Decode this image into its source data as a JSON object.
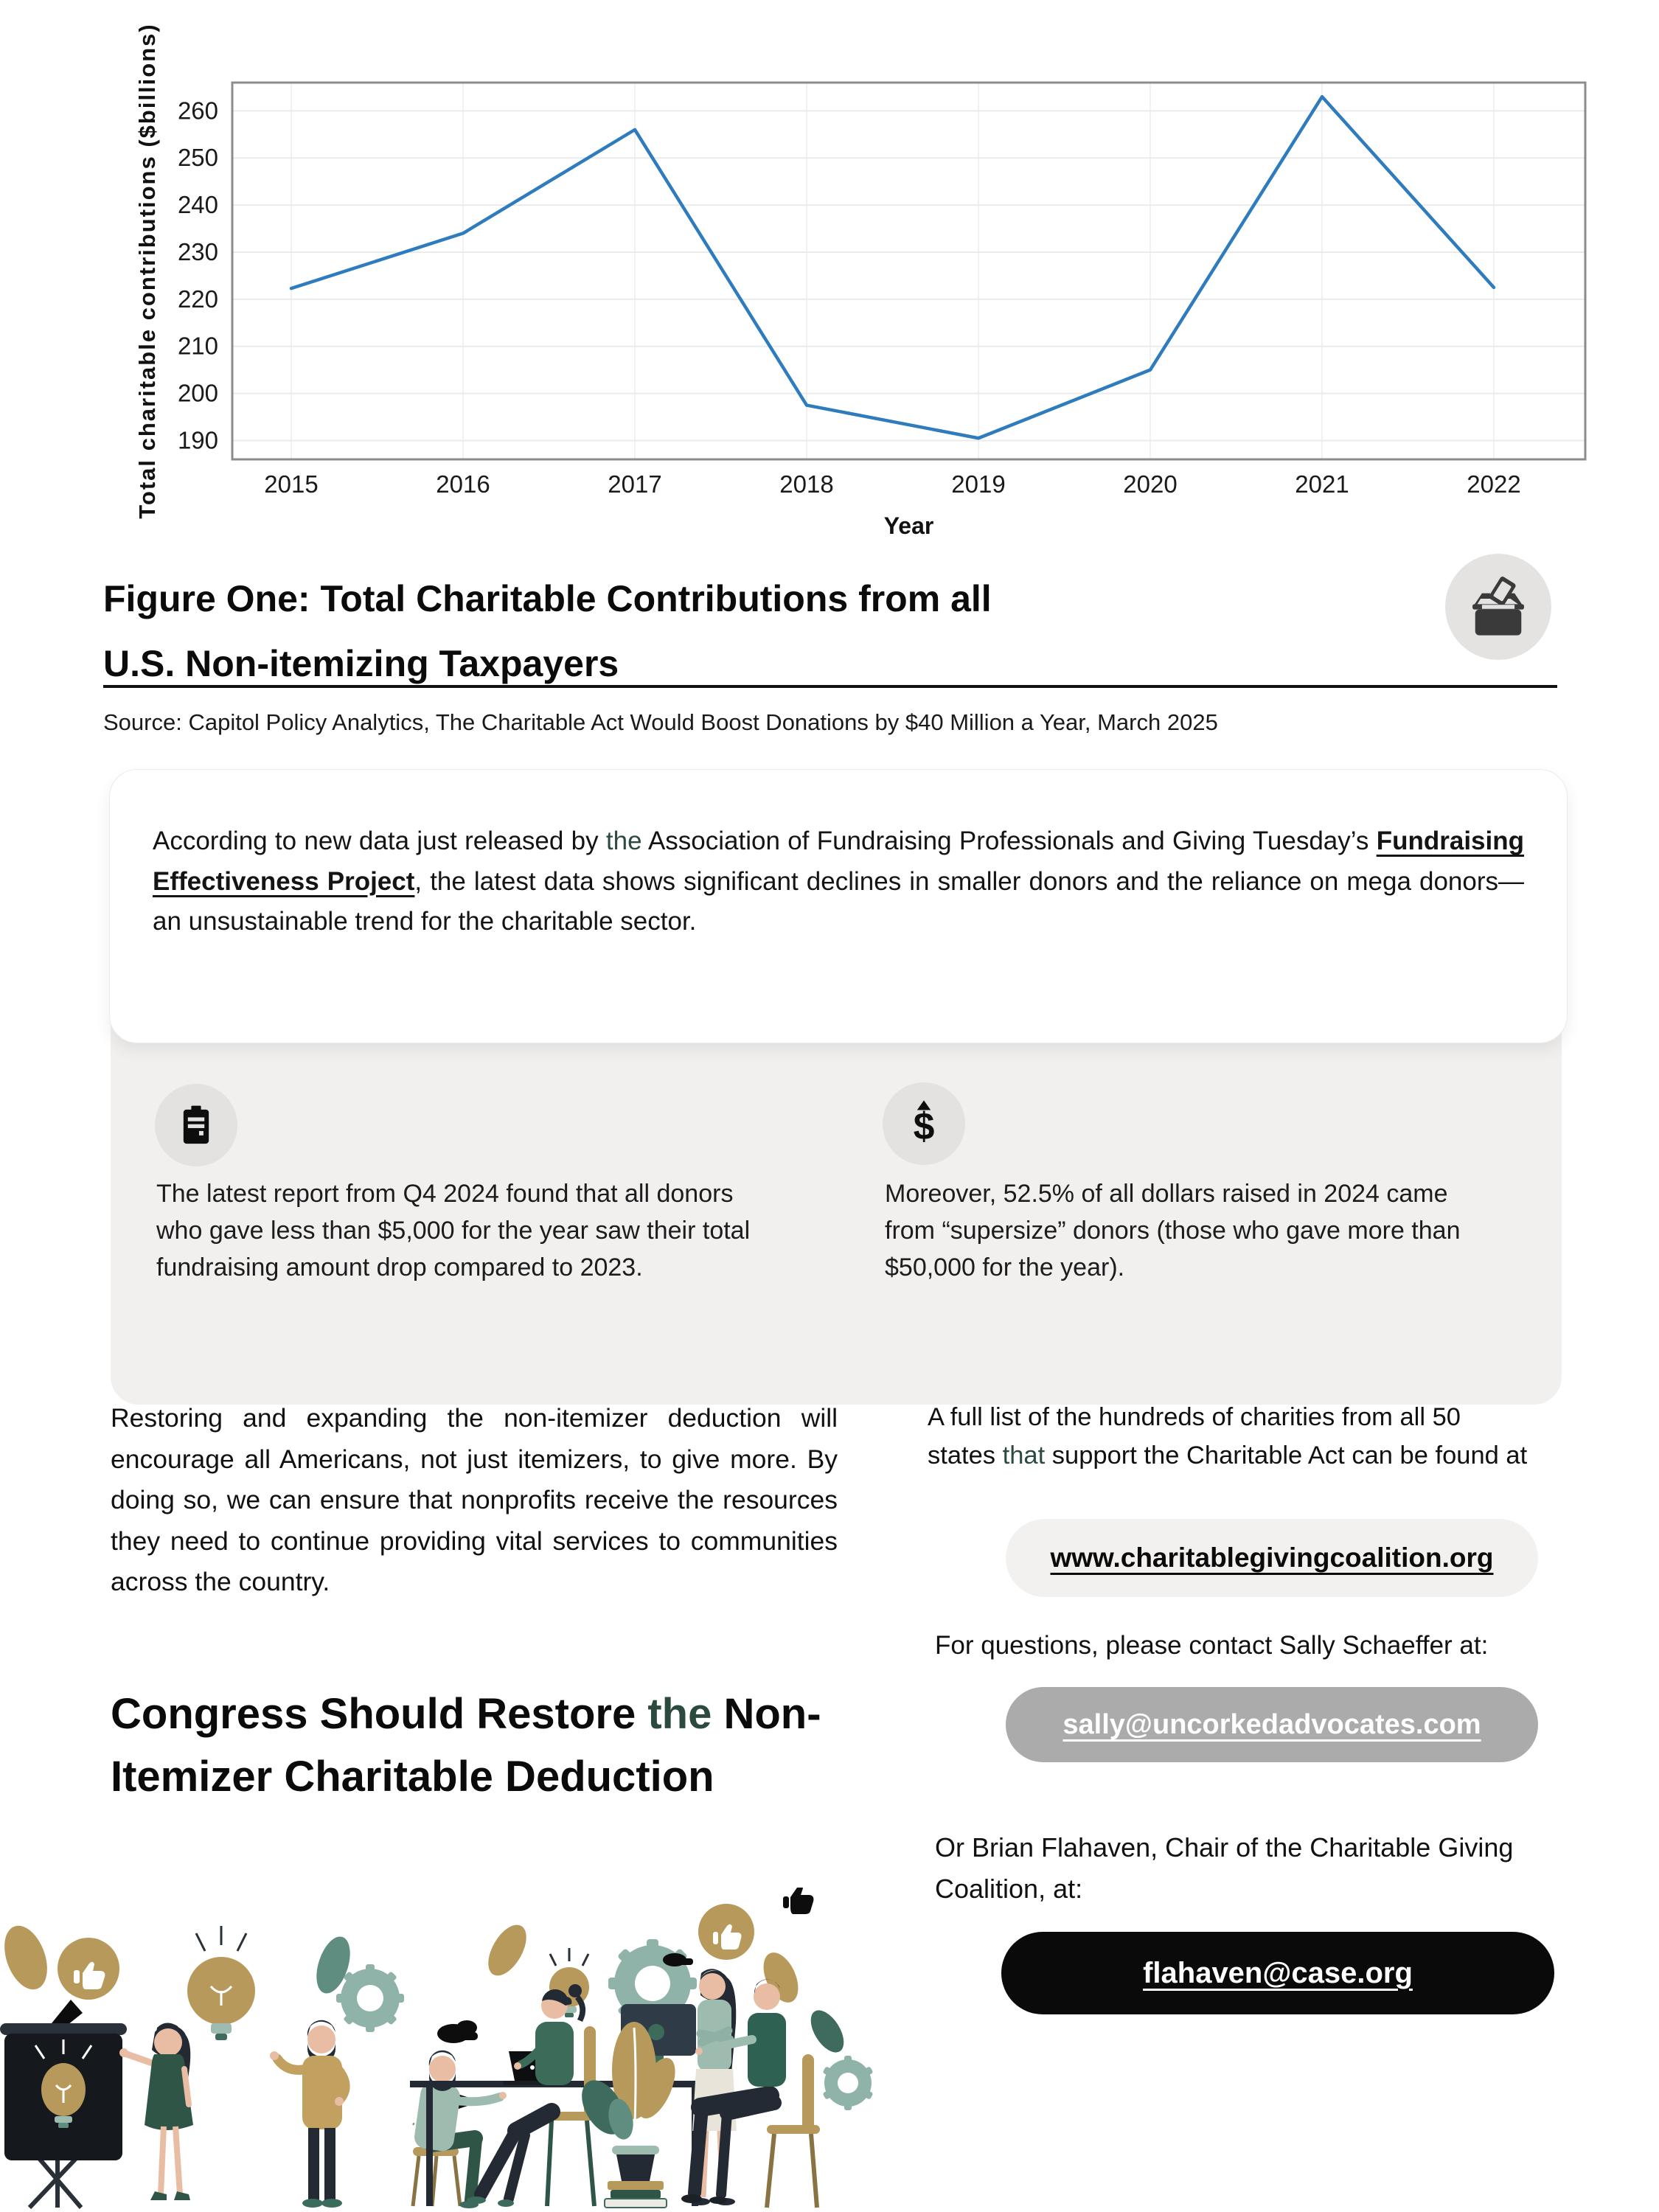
{
  "chart_data": {
    "type": "line",
    "title": "",
    "xlabel": "Year",
    "ylabel": "Total charitable contributions ($billions)",
    "x": [
      2015,
      2016,
      2017,
      2018,
      2019,
      2020,
      2021,
      2022
    ],
    "values": [
      222.3,
      234,
      256,
      197.5,
      190.5,
      205,
      263,
      222.5
    ],
    "ylim": [
      186,
      266
    ],
    "yticks": [
      190,
      200,
      210,
      220,
      230,
      240,
      250,
      260
    ],
    "grid": true,
    "legend": "none",
    "line_color": "#2e7cbe"
  },
  "figure": {
    "title_line1": "Figure One: Total Charitable Contributions from all",
    "title_line2": "U.S. Non-itemizing Taxpayers",
    "source": "Source: Capitol Policy Analytics, The Charitable Act Would Boost Donations by $40 Million a Year, March 2025"
  },
  "intro": {
    "segments": [
      {
        "t": "According to new data just released by "
      },
      {
        "t": "the",
        "s": "green"
      },
      {
        "t": " Association of Fundraising Professionals and Giving Tuesday’s "
      },
      {
        "t": "Fundraising Effectiveness Project",
        "s": "boldu"
      },
      {
        "t": ", the latest data shows significant declines in smaller donors and the reliance on mega donors—an unsustainable trend for the charitable sector."
      }
    ]
  },
  "stats": {
    "left": "The latest report from Q4 2024 found that all donors who gave less than $5,000 for the year saw their total fundraising amount drop compared to 2023.",
    "right": "Moreover, 52.5% of all dollars raised in 2024 came from “supersize” donors (those who gave more than $50,000 for the year)."
  },
  "left_column": {
    "paragraph": "Restoring and expanding the non-itemizer deduction will encourage all Americans, not just itemizers, to give more. By doing so, we can ensure that nonprofits receive the resources they need to continue providing vital services to communities across the country.",
    "heading_segments": [
      {
        "t": "Congress Should Restore "
      },
      {
        "t": "the",
        "s": "green"
      },
      {
        "t": " Non-"
      },
      {
        "br": true
      },
      {
        "t": "Itemizer Charitable Deduction"
      }
    ]
  },
  "right_column": {
    "charities_segments": [
      {
        "t": "A full list of the hundreds of charities from all 50 states "
      },
      {
        "t": "that",
        "s": "green"
      },
      {
        "t": " support the Charitable Act can be found at"
      }
    ],
    "link": "www.charitablegivingcoalition.org",
    "questions": "For questions, please contact Sally Schaeffer at:",
    "sally_email": "sally@uncorkedadvocates.com",
    "brian_text": "Or Brian Flahaven, Chair of the Charitable Giving Coalition, at:",
    "brian_email": "flahaven@case.org"
  },
  "colors": {
    "accent_green": "#2d4a3e",
    "line_blue": "#2e7cbe",
    "gray_block": "#f1f0ef",
    "sally_pill_gray": "#ababab",
    "brian_pill_black": "#0a0a0a",
    "illustration_gold": "#b79a5b",
    "illustration_teal": "#8fb3a9",
    "illustration_dark_green": "#2f5547"
  }
}
